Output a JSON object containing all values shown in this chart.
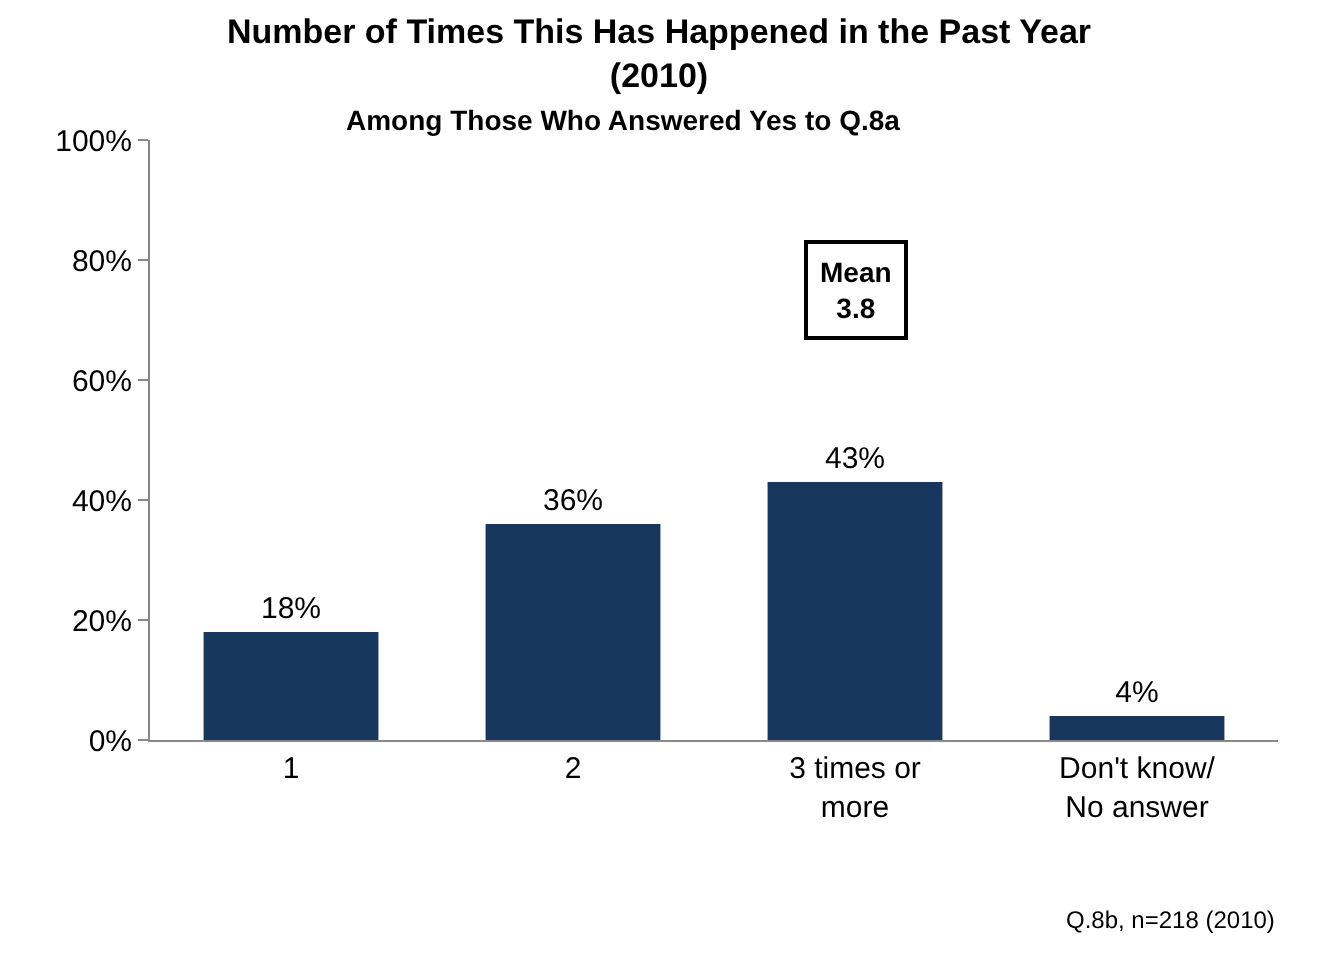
{
  "chart_data": {
    "type": "bar",
    "title": "Number of Times This Has Happened in the Past Year\n(2010)",
    "subtitle": "Among Those Who Answered Yes to Q.8a",
    "categories": [
      "1",
      "2",
      "3 times or\nmore",
      "Don't know/\nNo answer"
    ],
    "values": [
      18,
      36,
      43,
      4
    ],
    "value_labels": [
      "18%",
      "36%",
      "43%",
      "4%"
    ],
    "color": "#17375e",
    "ylim": [
      0,
      100
    ],
    "yticks": [
      {
        "value": 0,
        "label": "0%"
      },
      {
        "value": 20,
        "label": "20%"
      },
      {
        "value": 40,
        "label": "40%"
      },
      {
        "value": 60,
        "label": "60%"
      },
      {
        "value": 80,
        "label": "80%"
      },
      {
        "value": 100,
        "label": "100%"
      }
    ],
    "annotations": [
      "Mean\n3.8",
      "Q.8b, n=218 (2010)"
    ]
  }
}
